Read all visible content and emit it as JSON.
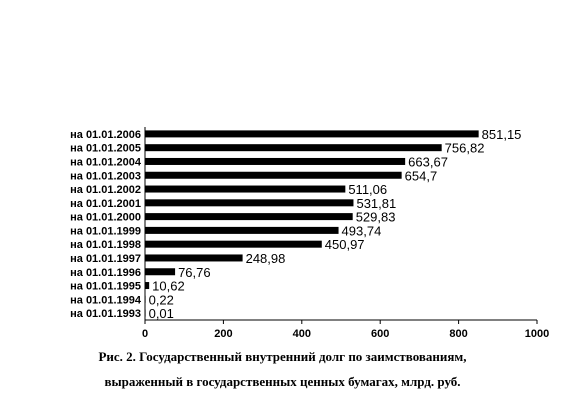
{
  "chart_data": {
    "type": "bar",
    "orientation": "horizontal",
    "categories": [
      "на 01.01.2006",
      "на 01.01.2005",
      "на 01.01.2004",
      "на 01.01.2003",
      "на 01.01.2002",
      "на 01.01.2001",
      "на 01.01.2000",
      "на 01.01.1999",
      "на 01.01.1998",
      "на 01.01.1997",
      "на 01.01.1996",
      "на 01.01.1995",
      "на 01.01.1994",
      "на 01.01.1993"
    ],
    "values": [
      851.15,
      756.82,
      663.67,
      654.7,
      511.06,
      531.81,
      529.83,
      493.74,
      450.97,
      248.98,
      76.76,
      10.62,
      0.22,
      0.01
    ],
    "value_labels": [
      "851,15",
      "756,82",
      "663,67",
      "654,7",
      "511,06",
      "531,81",
      "529,83",
      "493,74",
      "450,97",
      "248,98",
      "76,76",
      "10,62",
      "0,22",
      "0,01"
    ],
    "xlim": [
      0,
      1000
    ],
    "xticks": [
      0,
      200,
      400,
      600,
      800,
      1000
    ],
    "bar_color": "#000000",
    "grid": false,
    "legend": "none"
  },
  "caption": {
    "line1": "Рис. 2. Государственный внутренний долг по заимствованиям,",
    "line2": "выраженный в государственных ценных бумагах, млрд. руб."
  }
}
